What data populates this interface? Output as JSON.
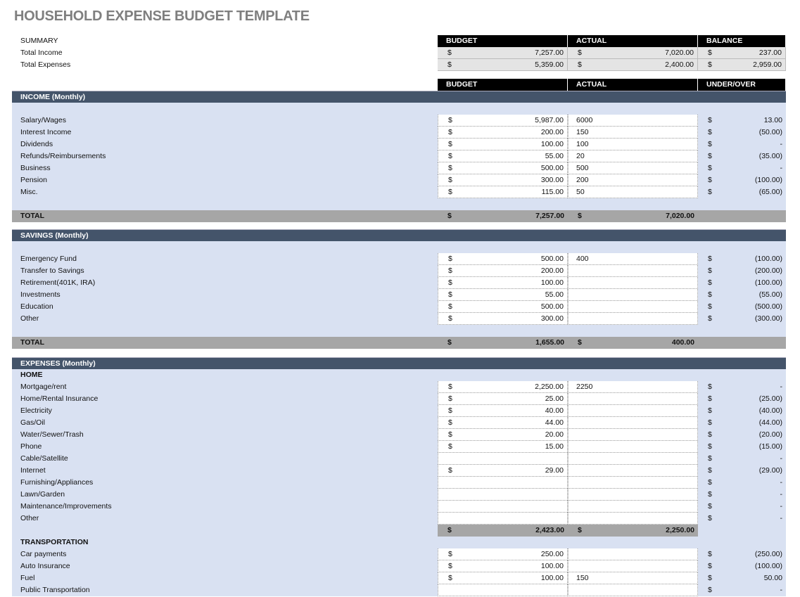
{
  "title": "HOUSEHOLD EXPENSE BUDGET TEMPLATE",
  "summary": {
    "label": "SUMMARY",
    "headers": [
      "BUDGET",
      "ACTUAL",
      "BALANCE"
    ],
    "rows": [
      {
        "label": "Total Income",
        "budget": "7,257.00",
        "actual": "7,020.00",
        "balance": "237.00"
      },
      {
        "label": "Total Expenses",
        "budget": "5,359.00",
        "actual": "2,400.00",
        "balance": "2,959.00"
      }
    ],
    "currency": "$"
  },
  "columns": [
    "BUDGET",
    "ACTUAL",
    "UNDER/OVER"
  ],
  "colors": {
    "section": "#44546a",
    "band": "#d9e1f2",
    "total": "#a6a6a6"
  },
  "rows": [
    {
      "t": "sec",
      "label": "INCOME (Monthly)"
    },
    {
      "t": "blank"
    },
    {
      "t": "item",
      "label": "Salary/Wages",
      "budget": "5,987.00",
      "actual": "6000",
      "diff": "13.00"
    },
    {
      "t": "item",
      "label": "Interest Income",
      "budget": "200.00",
      "actual": "150",
      "diff": "(50.00)"
    },
    {
      "t": "item",
      "label": "Dividends",
      "budget": "100.00",
      "actual": "100",
      "diff": "-"
    },
    {
      "t": "item",
      "label": "Refunds/Reimbursements",
      "budget": "55.00",
      "actual": "20",
      "diff": "(35.00)"
    },
    {
      "t": "item",
      "label": "Business",
      "budget": "500.00",
      "actual": "500",
      "diff": "-"
    },
    {
      "t": "item",
      "label": "Pension",
      "budget": "300.00",
      "actual": "200",
      "diff": "(100.00)"
    },
    {
      "t": "item",
      "label": "Misc.",
      "budget": "115.00",
      "actual": "50",
      "diff": "(65.00)"
    },
    {
      "t": "blank"
    },
    {
      "t": "tot",
      "label": "TOTAL",
      "budget": "7,257.00",
      "actual": "7,020.00"
    },
    {
      "t": "gap"
    },
    {
      "t": "sec",
      "label": "SAVINGS (Monthly)"
    },
    {
      "t": "blank"
    },
    {
      "t": "item",
      "label": "Emergency Fund",
      "budget": "500.00",
      "actual": "400",
      "diff": "(100.00)"
    },
    {
      "t": "item",
      "label": "Transfer to Savings",
      "budget": "200.00",
      "actual": "",
      "diff": "(200.00)"
    },
    {
      "t": "item",
      "label": "Retirement(401K, IRA)",
      "budget": "100.00",
      "actual": "",
      "diff": "(100.00)"
    },
    {
      "t": "item",
      "label": "Investments",
      "budget": "55.00",
      "actual": "",
      "diff": "(55.00)"
    },
    {
      "t": "item",
      "label": "Education",
      "budget": "500.00",
      "actual": "",
      "diff": "(500.00)"
    },
    {
      "t": "item",
      "label": "Other",
      "budget": "300.00",
      "actual": "",
      "diff": "(300.00)"
    },
    {
      "t": "blank"
    },
    {
      "t": "tot",
      "label": "TOTAL",
      "budget": "1,655.00",
      "actual": "400.00"
    },
    {
      "t": "gap12"
    },
    {
      "t": "sec",
      "label": "EXPENSES (Monthly)"
    },
    {
      "t": "sub",
      "label": "HOME"
    },
    {
      "t": "item",
      "label": "Mortgage/rent",
      "budget": "2,250.00",
      "actual": "2250",
      "diff": "-"
    },
    {
      "t": "item",
      "label": "Home/Rental Insurance",
      "budget": "25.00",
      "actual": "",
      "diff": "(25.00)"
    },
    {
      "t": "item",
      "label": "Electricity",
      "budget": "40.00",
      "actual": "",
      "diff": "(40.00)"
    },
    {
      "t": "item",
      "label": "Gas/Oil",
      "budget": "44.00",
      "actual": "",
      "diff": "(44.00)"
    },
    {
      "t": "item",
      "label": "Water/Sewer/Trash",
      "budget": "20.00",
      "actual": "",
      "diff": "(20.00)"
    },
    {
      "t": "item",
      "label": "Phone",
      "budget": "15.00",
      "actual": "",
      "diff": "(15.00)"
    },
    {
      "t": "item",
      "label": "Cable/Satellite",
      "budget": "",
      "actual": "",
      "diff": "-"
    },
    {
      "t": "item",
      "label": "Internet",
      "budget": "29.00",
      "actual": "",
      "diff": "(29.00)"
    },
    {
      "t": "item",
      "label": "Furnishing/Appliances",
      "budget": "",
      "actual": "",
      "diff": "-"
    },
    {
      "t": "item",
      "label": "Lawn/Garden",
      "budget": "",
      "actual": "",
      "diff": "-"
    },
    {
      "t": "item",
      "label": "Maintenance/Improvements",
      "budget": "",
      "actual": "",
      "diff": "-"
    },
    {
      "t": "item",
      "label": "Other",
      "budget": "",
      "actual": "",
      "diff": "-"
    },
    {
      "t": "st",
      "budget": "2,423.00",
      "actual": "2,250.00"
    },
    {
      "t": "sub",
      "label": "TRANSPORTATION"
    },
    {
      "t": "item",
      "label": "Car payments",
      "budget": "250.00",
      "actual": "",
      "diff": "(250.00)"
    },
    {
      "t": "item",
      "label": "Auto Insurance",
      "budget": "100.00",
      "actual": "",
      "diff": "(100.00)"
    },
    {
      "t": "item",
      "label": "Fuel",
      "budget": "100.00",
      "actual": "150",
      "diff": "50.00"
    },
    {
      "t": "item",
      "label": "Public Transportation",
      "budget": "",
      "actual": "",
      "diff": "-"
    }
  ]
}
